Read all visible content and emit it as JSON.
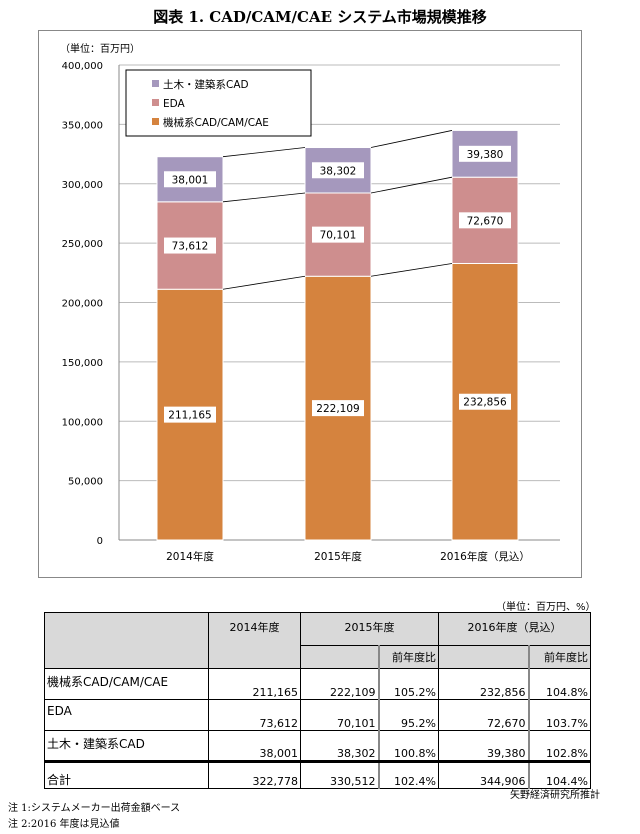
{
  "title": "図表 1. CAD/CAM/CAE システム市場規模推移",
  "chart_data": {
    "type": "bar",
    "stacked": true,
    "unit_label": "（単位：百万円）",
    "categories": [
      "2014年度",
      "2015年度",
      "2016年度（見込）"
    ],
    "series": [
      {
        "name": "機械系CAD/CAM/CAE",
        "color": "#D5833E",
        "values": [
          211165,
          222109,
          232856
        ],
        "labels": [
          "211,165",
          "222,109",
          "232,856"
        ]
      },
      {
        "name": "EDA",
        "color": "#CE8E8E",
        "values": [
          73612,
          70101,
          72670
        ],
        "labels": [
          "73,612",
          "70,101",
          "72,670"
        ]
      },
      {
        "name": "土木・建築系CAD",
        "color": "#A598BD",
        "values": [
          38001,
          38302,
          39380
        ],
        "labels": [
          "38,001",
          "38,302",
          "39,380"
        ]
      }
    ],
    "legend_order": [
      "土木・建築系CAD",
      "EDA",
      "機械系CAD/CAM/CAE"
    ],
    "ylim": [
      0,
      400000
    ],
    "yticks": [
      0,
      50000,
      100000,
      150000,
      200000,
      250000,
      300000,
      350000,
      400000
    ],
    "ytick_labels": [
      "0",
      "50,000",
      "100,000",
      "150,000",
      "200,000",
      "250,000",
      "300,000",
      "350,000",
      "400,000"
    ],
    "grid": true,
    "legend": "top-left"
  },
  "table": {
    "unit": "（単位：百万円、%）",
    "headers": [
      "2014年度",
      "2015年度",
      "2016年度（見込）"
    ],
    "sub": "前年度比",
    "rows": [
      {
        "label": "機械系CAD/CAM/CAE",
        "v": [
          "211,165",
          "222,109",
          "105.2%",
          "232,856",
          "104.8%"
        ]
      },
      {
        "label": "EDA",
        "v": [
          "73,612",
          "70,101",
          "95.2%",
          "72,670",
          "103.7%"
        ]
      },
      {
        "label": "土木・建築系CAD",
        "v": [
          "38,001",
          "38,302",
          "100.8%",
          "39,380",
          "102.8%"
        ]
      },
      {
        "label": "合計",
        "v": [
          "322,778",
          "330,512",
          "102.4%",
          "344,906",
          "104.4%"
        ]
      }
    ],
    "source": "矢野経済研究所推計"
  },
  "notes": [
    "注 1:システムメーカー出荷金額ベース",
    "注 2:2016 年度は見込値"
  ]
}
